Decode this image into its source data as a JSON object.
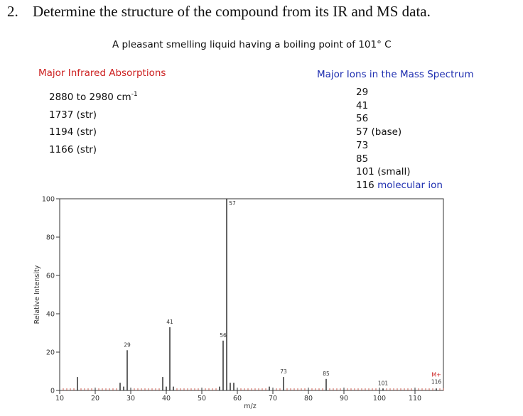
{
  "problem": {
    "number": "2.",
    "text": "Determine the structure of the compound from its IR and MS data."
  },
  "description": "A pleasant smelling liquid having a boiling point of 101° C",
  "ir": {
    "heading": "Major Infrared Absorptions",
    "items": [
      {
        "text": "2880 to 2980 cm",
        "sup": "-1"
      },
      {
        "text": "1737 (str)"
      },
      {
        "text": "1194 (str)"
      },
      {
        "text": "1166 (str)"
      }
    ]
  },
  "ms": {
    "heading": "Major Ions in the Mass Spectrum",
    "items": [
      {
        "value": "29",
        "note": ""
      },
      {
        "value": "41",
        "note": ""
      },
      {
        "value": "56",
        "note": ""
      },
      {
        "value": "57",
        "note": "(base)"
      },
      {
        "value": "73",
        "note": ""
      },
      {
        "value": "85",
        "note": ""
      },
      {
        "value": "101",
        "note": "(small)"
      },
      {
        "value": "116",
        "note": "molecular ion"
      }
    ]
  },
  "colors": {
    "ir_heading": "#cc1f1f",
    "ms_heading": "#1f2fb0",
    "molecular_ion_label": "#cc1f1f",
    "peaks": "#111111"
  },
  "chart_data": {
    "type": "bar",
    "xlabel": "m/z",
    "ylabel": "Relative Intensity",
    "xlim": [
      10,
      118
    ],
    "ylim": [
      0,
      100
    ],
    "x_ticks": [
      10,
      20,
      30,
      40,
      50,
      60,
      70,
      80,
      90,
      100,
      110
    ],
    "y_ticks": [
      0,
      20,
      40,
      60,
      80,
      100
    ],
    "peaks": [
      {
        "mz": 15,
        "intensity": 7
      },
      {
        "mz": 27,
        "intensity": 4
      },
      {
        "mz": 28,
        "intensity": 2
      },
      {
        "mz": 29,
        "intensity": 21,
        "label": "29"
      },
      {
        "mz": 39,
        "intensity": 7
      },
      {
        "mz": 40,
        "intensity": 2
      },
      {
        "mz": 41,
        "intensity": 33,
        "label": "41"
      },
      {
        "mz": 42,
        "intensity": 2
      },
      {
        "mz": 55,
        "intensity": 2
      },
      {
        "mz": 56,
        "intensity": 26,
        "label": "56"
      },
      {
        "mz": 57,
        "intensity": 100,
        "label": "57"
      },
      {
        "mz": 58,
        "intensity": 4
      },
      {
        "mz": 59,
        "intensity": 4
      },
      {
        "mz": 69,
        "intensity": 2
      },
      {
        "mz": 73,
        "intensity": 7,
        "label": "73"
      },
      {
        "mz": 85,
        "intensity": 6,
        "label": "85"
      },
      {
        "mz": 101,
        "intensity": 1,
        "label": "101"
      },
      {
        "mz": 116,
        "intensity": 1,
        "label": "116"
      }
    ],
    "molecular_ion_marker": "M+"
  }
}
